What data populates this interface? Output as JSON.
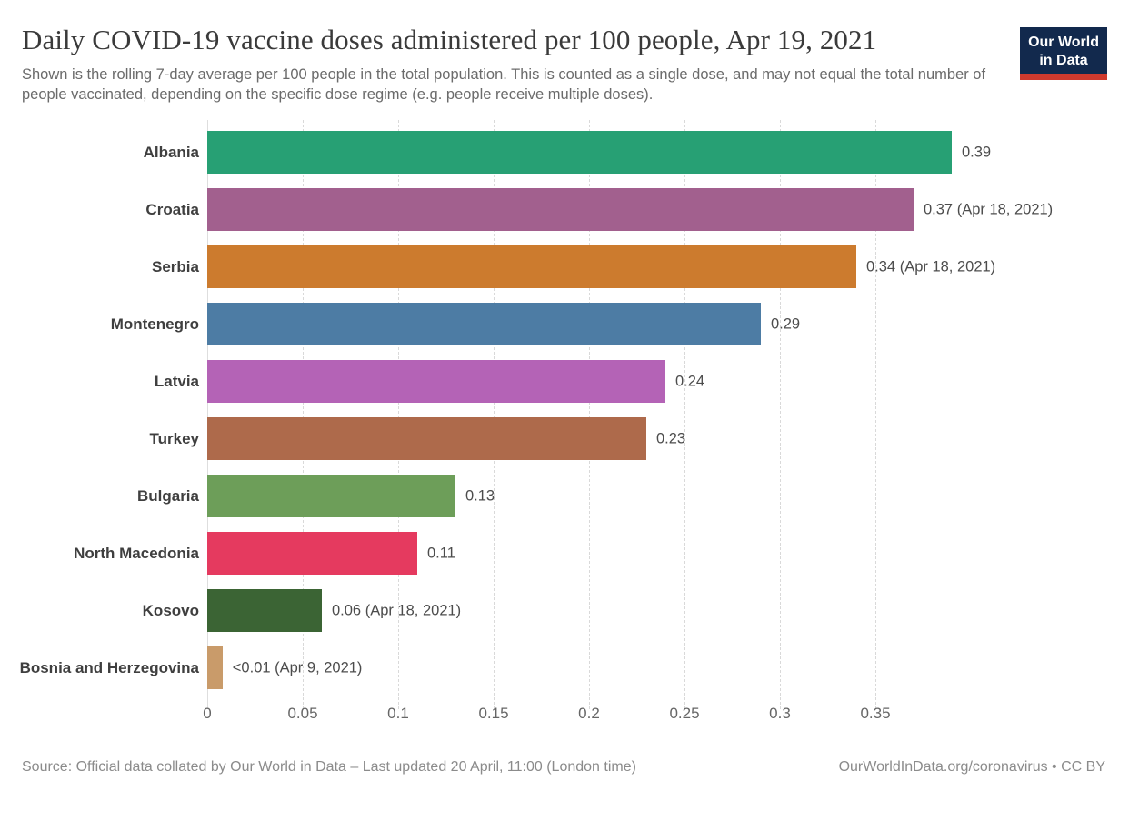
{
  "header": {
    "title": "Daily COVID-19 vaccine doses administered per 100 people, Apr 19, 2021",
    "subtitle": "Shown is the rolling 7-day average per 100 people in the total population. This is counted as a single dose, and may not equal the total number of people vaccinated, depending on the specific dose regime (e.g. people receive multiple doses).",
    "logo": {
      "line1": "Our World",
      "line2": "in Data",
      "bg_color": "#12294d",
      "accent_color": "#cf3a2e"
    }
  },
  "chart_data": {
    "type": "bar",
    "orientation": "horizontal",
    "title": "Daily COVID-19 vaccine doses administered per 100 people, Apr 19, 2021",
    "xlabel": "",
    "ylabel": "",
    "xlim": [
      0,
      0.4
    ],
    "grid": true,
    "legend": false,
    "categories": [
      "Albania",
      "Croatia",
      "Serbia",
      "Montenegro",
      "Latvia",
      "Turkey",
      "Bulgaria",
      "North Macedonia",
      "Kosovo",
      "Bosnia and Herzegovina"
    ],
    "values": [
      0.39,
      0.37,
      0.34,
      0.29,
      0.24,
      0.23,
      0.13,
      0.11,
      0.06,
      0.008
    ],
    "bars": [
      {
        "label": "Albania",
        "value": 0.39,
        "value_label": "0.39",
        "color": "#27a074"
      },
      {
        "label": "Croatia",
        "value": 0.37,
        "value_label": "0.37 (Apr 18, 2021)",
        "color": "#a2608e"
      },
      {
        "label": "Serbia",
        "value": 0.34,
        "value_label": "0.34 (Apr 18, 2021)",
        "color": "#cc7b2e"
      },
      {
        "label": "Montenegro",
        "value": 0.29,
        "value_label": "0.29",
        "color": "#4d7ca4"
      },
      {
        "label": "Latvia",
        "value": 0.24,
        "value_label": "0.24",
        "color": "#b463b6"
      },
      {
        "label": "Turkey",
        "value": 0.23,
        "value_label": "0.23",
        "color": "#ae6a4b"
      },
      {
        "label": "Bulgaria",
        "value": 0.13,
        "value_label": "0.13",
        "color": "#6d9e59"
      },
      {
        "label": "North Macedonia",
        "value": 0.11,
        "value_label": "0.11",
        "color": "#e53a5f"
      },
      {
        "label": "Kosovo",
        "value": 0.06,
        "value_label": "0.06 (Apr 18, 2021)",
        "color": "#3b6434"
      },
      {
        "label": "Bosnia and Herzegovina",
        "value": 0.008,
        "value_label": "<0.01 (Apr 9, 2021)",
        "color": "#c99b6a"
      }
    ],
    "x_ticks": [
      "0",
      "0.05",
      "0.1",
      "0.15",
      "0.2",
      "0.25",
      "0.3",
      "0.35"
    ],
    "x_tick_values": [
      0,
      0.05,
      0.1,
      0.15,
      0.2,
      0.25,
      0.3,
      0.35
    ]
  },
  "footer": {
    "source": "Source: Official data collated by Our World in Data – Last updated 20 April, 11:00 (London time)",
    "attribution": "OurWorldInData.org/coronavirus • CC BY"
  }
}
